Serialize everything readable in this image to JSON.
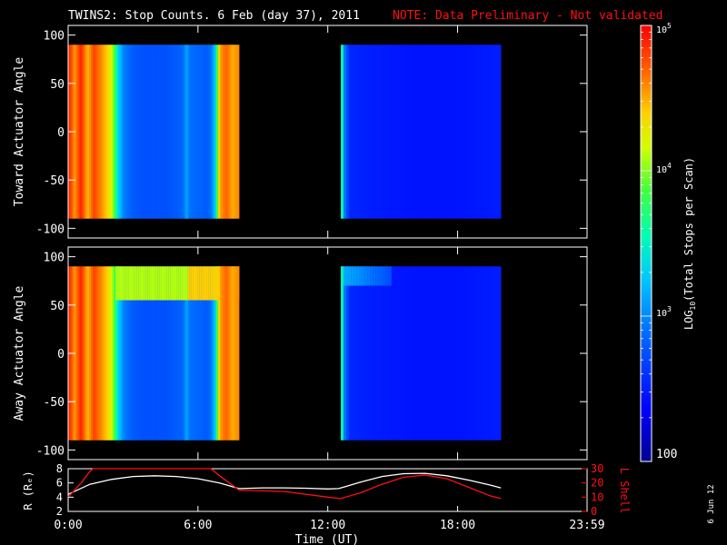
{
  "header": {
    "title": "TWINS2: Stop Counts.  6 Feb (day  37), 2011",
    "note": "NOTE: Data Preliminary - Not validated",
    "note_color": "#ff1010"
  },
  "footer": {
    "date_stamp": "6 Jun 12"
  },
  "chart_data": [
    {
      "type": "heatmap",
      "title": "",
      "ylabel": "Toward Actuator Angle",
      "xlabel": "",
      "ylim": [
        -110,
        110
      ],
      "xlim": [
        0,
        23.983
      ],
      "y_ticks": [
        100,
        50,
        0,
        -50,
        -100
      ],
      "y_tick_labels": [
        "100",
        "50",
        "0",
        "-50",
        "-100"
      ],
      "data_y_range": [
        -90,
        90
      ],
      "data_blocks": [
        {
          "x_start": 0.0,
          "x_end": 7.9,
          "y_range": [
            -90,
            90
          ]
        },
        {
          "x_start": 12.6,
          "x_end": 20.0,
          "y_range": [
            -90,
            90
          ]
        }
      ],
      "time_profile": [
        [
          0.0,
          4.95
        ],
        [
          0.3,
          4.55
        ],
        [
          0.6,
          4.9
        ],
        [
          0.9,
          4.45
        ],
        [
          1.2,
          4.8
        ],
        [
          1.5,
          4.6
        ],
        [
          1.8,
          4.4
        ],
        [
          2.0,
          4.2
        ],
        [
          2.15,
          3.85
        ],
        [
          2.3,
          3.35
        ],
        [
          2.6,
          2.95
        ],
        [
          3.0,
          2.8
        ],
        [
          3.5,
          2.75
        ],
        [
          4.0,
          2.75
        ],
        [
          4.5,
          2.75
        ],
        [
          5.0,
          2.8
        ],
        [
          5.3,
          2.85
        ],
        [
          5.5,
          3.15
        ],
        [
          5.6,
          2.9
        ],
        [
          6.0,
          2.85
        ],
        [
          6.4,
          2.8
        ],
        [
          6.6,
          2.9
        ],
        [
          6.8,
          3.3
        ],
        [
          7.0,
          4.5
        ],
        [
          7.3,
          4.7
        ],
        [
          7.6,
          4.5
        ],
        [
          7.9,
          4.6
        ],
        [
          12.6,
          3.9
        ],
        [
          12.75,
          3.0
        ],
        [
          13.0,
          2.55
        ],
        [
          14.0,
          2.5
        ],
        [
          16.0,
          2.45
        ],
        [
          18.0,
          2.45
        ],
        [
          20.0,
          2.5
        ]
      ]
    },
    {
      "type": "heatmap",
      "title": "",
      "ylabel": "Away Actuator Angle",
      "xlabel": "",
      "ylim": [
        -110,
        110
      ],
      "xlim": [
        0,
        23.983
      ],
      "y_ticks": [
        100,
        50,
        0,
        -50,
        -100
      ],
      "y_tick_labels": [
        "100",
        "50",
        "0",
        "-50",
        "-100"
      ],
      "data_y_range": [
        -90,
        90
      ],
      "data_blocks": [
        {
          "x_start": 0.0,
          "x_end": 7.9,
          "y_range": [
            -90,
            90
          ]
        },
        {
          "x_start": 12.6,
          "x_end": 20.0,
          "y_range": [
            -90,
            90
          ]
        }
      ],
      "enhancement": {
        "y_range": [
          55,
          90
        ],
        "x_range": [
          2.2,
          7.9
        ],
        "log_value": 4.4
      }
    },
    {
      "type": "line",
      "title": "",
      "xlabel": "Time (UT)",
      "ylabel": "R (Rₑ)",
      "y2label": "L Shell",
      "xlim": [
        0,
        23.983
      ],
      "x_ticks": [
        0,
        6,
        12,
        18,
        23.983
      ],
      "x_tick_labels": [
        "0:00",
        "6:00",
        "12:00",
        "18:00",
        "23:59"
      ],
      "ylim": [
        2,
        8
      ],
      "y_ticks": [
        2,
        4,
        6,
        8
      ],
      "y_tick_labels": [
        "2",
        "4",
        "6",
        "8"
      ],
      "y2lim": [
        0,
        30
      ],
      "y2_ticks": [
        0,
        10,
        20,
        30
      ],
      "y2_tick_labels": [
        "0",
        "10",
        "20",
        "30"
      ],
      "series": [
        {
          "color": "#ffffff",
          "axis": "left",
          "x": [
            0,
            1,
            2,
            3,
            4,
            5,
            6,
            7,
            7.9,
            9,
            10,
            11,
            12,
            12.5,
            13.5,
            14.5,
            15.5,
            16.5,
            17.5,
            18.5,
            19.5,
            20
          ],
          "y": [
            4.4,
            5.8,
            6.5,
            6.9,
            7.0,
            6.9,
            6.6,
            6.0,
            5.2,
            5.3,
            5.3,
            5.25,
            5.15,
            5.2,
            6.1,
            6.9,
            7.3,
            7.35,
            7.0,
            6.4,
            5.7,
            5.3
          ]
        },
        {
          "color": "#ff1010",
          "axis": "right",
          "x": [
            0,
            0.6,
            1.0,
            1.15,
            6.6,
            7.0,
            7.9,
            10,
            12,
            12.6,
            13.5,
            14.5,
            15.5,
            16.5,
            17.5,
            18.5,
            19.5,
            20
          ],
          "y": [
            10,
            20,
            28,
            30,
            30,
            25,
            15,
            14,
            10,
            9,
            13,
            19,
            24,
            25.5,
            23,
            17,
            11,
            9
          ]
        }
      ]
    }
  ],
  "colorbar": {
    "label": "LOG",
    "label_subscript": "10",
    "label_suffix": "(Total Stops per Scan)",
    "scale": "log",
    "range": [
      100,
      100000
    ],
    "tick_100": "100",
    "tick_1e3_base": "10",
    "tick_1e3_exp": "3",
    "tick_1e4_base": "10",
    "tick_1e4_exp": "4",
    "tick_1e5_base": "10",
    "tick_1e5_exp": "5"
  }
}
